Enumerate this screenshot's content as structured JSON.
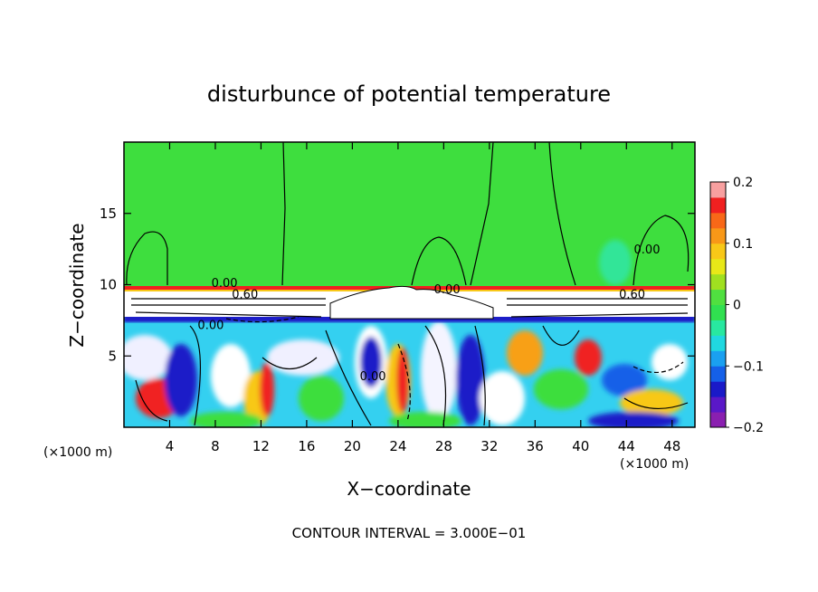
{
  "chart_data": {
    "type": "heatmap",
    "title": "disturbunce of potential temperature",
    "xlabel": "X−coordinate",
    "ylabel": "Z−coordinate",
    "x_unit_left": "(×1000 m)",
    "x_unit_right": "(×1000 m)",
    "footer": "CONTOUR INTERVAL = 3.000E−01",
    "xlim": [
      0,
      50
    ],
    "ylim": [
      0,
      20
    ],
    "x_ticks": [
      4,
      8,
      12,
      16,
      20,
      24,
      28,
      32,
      36,
      40,
      44,
      48
    ],
    "x_tick_labels": [
      "4",
      "8",
      "12",
      "16",
      "20",
      "24",
      "28",
      "32",
      "36",
      "40",
      "44",
      "48"
    ],
    "y_ticks": [
      5,
      10,
      15
    ],
    "y_tick_labels": [
      "5",
      "10",
      "15"
    ],
    "colorbar": {
      "range": [
        -0.2,
        0.2
      ],
      "tick_values": [
        0.2,
        0.1,
        0,
        -0.1,
        -0.2
      ],
      "tick_labels": [
        "0.2",
        "0.1",
        "0",
        "−0.1",
        "−0.2"
      ],
      "colors": [
        "#8a1fb0",
        "#5a18c8",
        "#1a1ac8",
        "#1560e8",
        "#1aa0f0",
        "#20d8e0",
        "#28e8a0",
        "#30e050",
        "#50e040",
        "#a0e020",
        "#e8e818",
        "#f8c818",
        "#f89818",
        "#f86818",
        "#f02020",
        "#f8a0a0"
      ]
    },
    "contour_labels": [
      {
        "x": 8.8,
        "y": 9.85,
        "text": "0.00"
      },
      {
        "x": 10.6,
        "y": 9.05,
        "text": "0.60"
      },
      {
        "x": 7.6,
        "y": 6.9,
        "text": "0.00"
      },
      {
        "x": 21.8,
        "y": 3.3,
        "text": "0.00"
      },
      {
        "x": 28.3,
        "y": 9.4,
        "text": "0.00"
      },
      {
        "x": 45.8,
        "y": 12.2,
        "text": "0.00"
      },
      {
        "x": 44.5,
        "y": 9.05,
        "text": "0.60"
      }
    ]
  }
}
